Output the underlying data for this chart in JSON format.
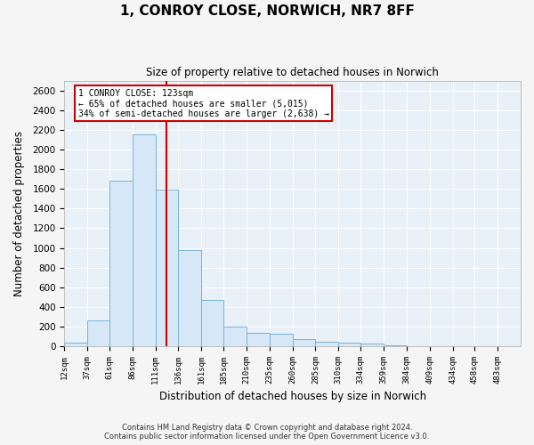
{
  "title": "1, CONROY CLOSE, NORWICH, NR7 8FF",
  "subtitle": "Size of property relative to detached houses in Norwich",
  "xlabel": "Distribution of detached houses by size in Norwich",
  "ylabel": "Number of detached properties",
  "footer_line1": "Contains HM Land Registry data © Crown copyright and database right 2024.",
  "footer_line2": "Contains public sector information licensed under the Open Government Licence v3.0.",
  "annotation_line1": "1 CONROY CLOSE: 123sqm",
  "annotation_line2": "← 65% of detached houses are smaller (5,015)",
  "annotation_line3": "34% of semi-detached houses are larger (2,638) →",
  "bar_color": "#d6e8f7",
  "bar_edge_color": "#7ab4d8",
  "vline_color": "#cc0000",
  "annotation_box_edge_color": "#cc0000",
  "background_color": "#e8f0f8",
  "grid_color": "#ffffff",
  "tick_label_color": "#222222",
  "bin_edges": [
    12,
    37,
    61,
    86,
    111,
    136,
    161,
    185,
    210,
    235,
    260,
    285,
    310,
    334,
    359,
    384,
    409,
    434,
    458,
    483,
    508
  ],
  "bar_heights": [
    40,
    260,
    1680,
    2150,
    1590,
    980,
    470,
    205,
    140,
    125,
    70,
    50,
    40,
    25,
    10,
    5,
    5,
    0,
    5,
    0
  ],
  "vline_x": 123,
  "ylim": [
    0,
    2700
  ],
  "yticks": [
    0,
    200,
    400,
    600,
    800,
    1000,
    1200,
    1400,
    1600,
    1800,
    2000,
    2200,
    2400,
    2600
  ],
  "figsize": [
    6.0,
    5.0
  ],
  "dpi": 100
}
